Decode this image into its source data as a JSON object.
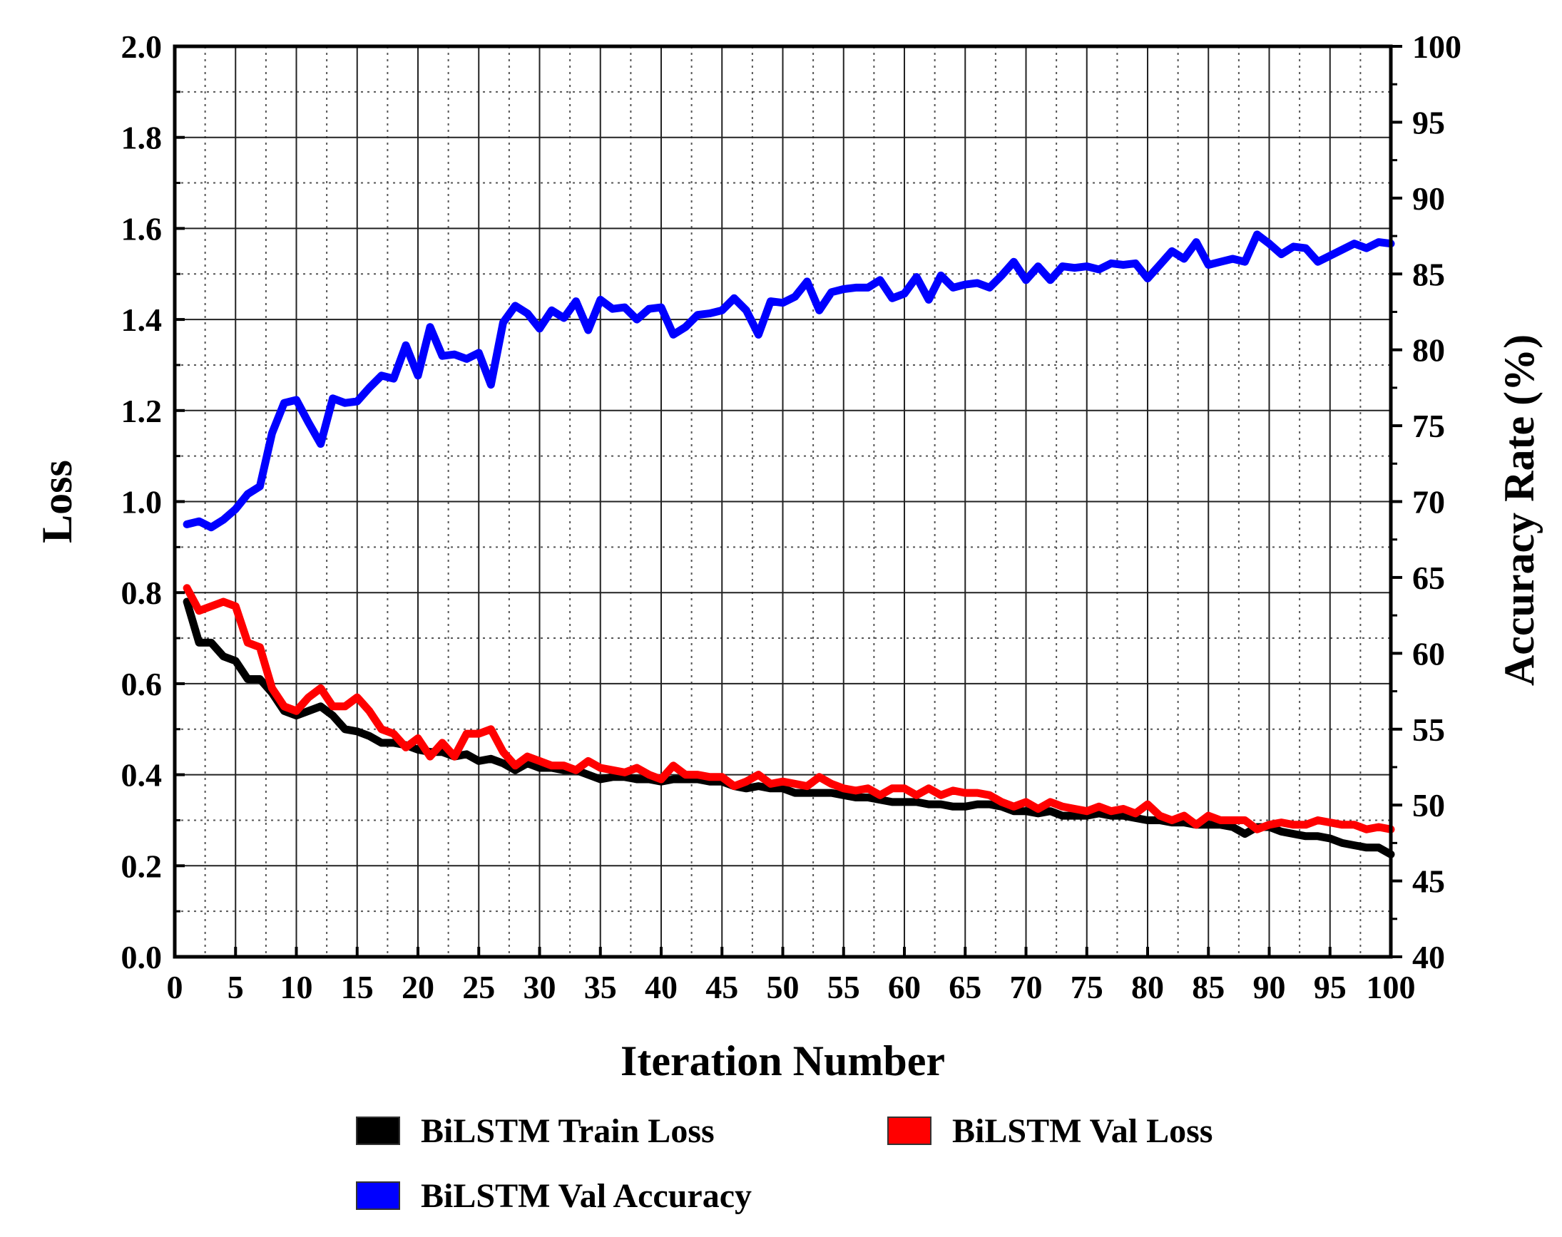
{
  "chart_data": {
    "type": "line",
    "xlabel": "Iteration Number",
    "ylabel": "Loss",
    "y2label": "Accuracy Rate (%)",
    "xlim": [
      0,
      100
    ],
    "ylim": [
      0,
      2.0
    ],
    "y2lim": [
      40,
      100
    ],
    "grid": true,
    "legend_position": "bottom",
    "x_ticks": [
      0,
      5,
      10,
      15,
      20,
      25,
      30,
      35,
      40,
      45,
      50,
      55,
      60,
      65,
      70,
      75,
      80,
      85,
      90,
      95,
      100
    ],
    "x_tick_labels": [
      "0",
      "5",
      "10",
      "15",
      "20",
      "25",
      "30",
      "35",
      "40",
      "45",
      "50",
      "55",
      "60",
      "65",
      "70",
      "75",
      "80",
      "85",
      "90",
      "95",
      "100"
    ],
    "y_ticks": [
      0,
      0.2,
      0.4,
      0.6,
      0.8,
      1.0,
      1.2,
      1.4,
      1.6,
      1.8,
      2.0
    ],
    "y_tick_labels": [
      "0.0",
      "0.2",
      "0.4",
      "0.6",
      "0.8",
      "1.0",
      "1.2",
      "1.4",
      "1.6",
      "1.8",
      "2.0"
    ],
    "y2_ticks": [
      40,
      45,
      50,
      55,
      60,
      65,
      70,
      75,
      80,
      85,
      90,
      95,
      100
    ],
    "y2_tick_labels": [
      "40",
      "45",
      "50",
      "55",
      "60",
      "65",
      "70",
      "75",
      "80",
      "85",
      "90",
      "95",
      "100"
    ],
    "x": [
      1,
      2,
      3,
      4,
      5,
      6,
      7,
      8,
      9,
      10,
      11,
      12,
      13,
      14,
      15,
      16,
      17,
      18,
      19,
      20,
      21,
      22,
      23,
      24,
      25,
      26,
      27,
      28,
      29,
      30,
      31,
      32,
      33,
      34,
      35,
      36,
      37,
      38,
      39,
      40,
      41,
      42,
      43,
      44,
      45,
      46,
      47,
      48,
      49,
      50,
      51,
      52,
      53,
      54,
      55,
      56,
      57,
      58,
      59,
      60,
      61,
      62,
      63,
      64,
      65,
      66,
      67,
      68,
      69,
      70,
      71,
      72,
      73,
      74,
      75,
      76,
      77,
      78,
      79,
      80,
      81,
      82,
      83,
      84,
      85,
      86,
      87,
      88,
      89,
      90,
      91,
      92,
      93,
      94,
      95,
      96,
      97,
      98,
      99,
      100
    ],
    "series": [
      {
        "name": "BiLSTM Train Loss",
        "axis": "left",
        "color": "#000000",
        "values": [
          0.78,
          0.69,
          0.69,
          0.66,
          0.65,
          0.61,
          0.61,
          0.58,
          0.54,
          0.53,
          0.54,
          0.55,
          0.53,
          0.5,
          0.495,
          0.485,
          0.47,
          0.47,
          0.465,
          0.455,
          0.45,
          0.45,
          0.44,
          0.445,
          0.43,
          0.435,
          0.425,
          0.41,
          0.425,
          0.415,
          0.415,
          0.41,
          0.41,
          0.4,
          0.39,
          0.395,
          0.395,
          0.39,
          0.39,
          0.385,
          0.39,
          0.39,
          0.39,
          0.385,
          0.385,
          0.375,
          0.37,
          0.375,
          0.37,
          0.37,
          0.36,
          0.36,
          0.36,
          0.36,
          0.355,
          0.35,
          0.35,
          0.345,
          0.34,
          0.34,
          0.34,
          0.335,
          0.335,
          0.33,
          0.33,
          0.335,
          0.335,
          0.33,
          0.32,
          0.32,
          0.315,
          0.32,
          0.31,
          0.31,
          0.31,
          0.315,
          0.31,
          0.31,
          0.305,
          0.3,
          0.3,
          0.295,
          0.295,
          0.29,
          0.29,
          0.29,
          0.285,
          0.27,
          0.285,
          0.285,
          0.275,
          0.27,
          0.265,
          0.265,
          0.26,
          0.25,
          0.245,
          0.24,
          0.24,
          0.225
        ]
      },
      {
        "name": "BiLSTM Val Loss",
        "axis": "left",
        "color": "#ff0000",
        "values": [
          0.81,
          0.76,
          0.77,
          0.78,
          0.77,
          0.69,
          0.68,
          0.59,
          0.55,
          0.54,
          0.57,
          0.59,
          0.55,
          0.55,
          0.57,
          0.54,
          0.5,
          0.49,
          0.46,
          0.48,
          0.44,
          0.47,
          0.44,
          0.49,
          0.49,
          0.5,
          0.45,
          0.42,
          0.44,
          0.43,
          0.42,
          0.42,
          0.41,
          0.43,
          0.415,
          0.41,
          0.405,
          0.415,
          0.4,
          0.39,
          0.42,
          0.4,
          0.4,
          0.395,
          0.395,
          0.375,
          0.385,
          0.4,
          0.38,
          0.385,
          0.38,
          0.375,
          0.395,
          0.38,
          0.37,
          0.365,
          0.37,
          0.355,
          0.37,
          0.37,
          0.355,
          0.37,
          0.355,
          0.365,
          0.36,
          0.36,
          0.355,
          0.34,
          0.33,
          0.34,
          0.325,
          0.34,
          0.33,
          0.325,
          0.32,
          0.33,
          0.32,
          0.325,
          0.315,
          0.335,
          0.31,
          0.3,
          0.31,
          0.29,
          0.31,
          0.3,
          0.3,
          0.3,
          0.28,
          0.29,
          0.295,
          0.29,
          0.29,
          0.3,
          0.295,
          0.29,
          0.29,
          0.28,
          0.285,
          0.28
        ]
      },
      {
        "name": "BiLSTM Val Accuracy",
        "axis": "right",
        "color": "#0000ff",
        "values": [
          68.5,
          68.7,
          68.3,
          68.8,
          69.5,
          70.5,
          71,
          74.5,
          76.5,
          76.7,
          75.2,
          73.8,
          76.8,
          76.5,
          76.6,
          77.5,
          78.3,
          78.1,
          80.3,
          78.3,
          81.5,
          79.6,
          79.7,
          79.4,
          79.8,
          77.7,
          81.8,
          82.9,
          82.4,
          81.4,
          82.6,
          82.1,
          83.2,
          81.3,
          83.3,
          82.7,
          82.8,
          82,
          82.7,
          82.8,
          81,
          81.5,
          82.3,
          82.4,
          82.6,
          83.4,
          82.6,
          81,
          83.2,
          83.1,
          83.5,
          84.5,
          82.6,
          83.8,
          84,
          84.1,
          84.1,
          84.6,
          83.4,
          83.7,
          84.8,
          83.3,
          84.9,
          84.1,
          84.3,
          84.4,
          84.1,
          84.9,
          85.8,
          84.6,
          85.5,
          84.6,
          85.5,
          85.4,
          85.5,
          85.3,
          85.7,
          85.6,
          85.7,
          84.7,
          85.6,
          86.5,
          86,
          87.1,
          85.6,
          85.8,
          86.0,
          85.8,
          87.6,
          87.0,
          86.3,
          86.8,
          86.7,
          85.8,
          86.2,
          86.6,
          87,
          86.7,
          87.1,
          87
        ]
      }
    ]
  }
}
